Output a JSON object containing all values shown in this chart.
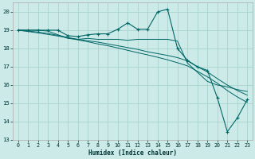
{
  "xlabel": "Humidex (Indice chaleur)",
  "bg_color": "#cceae7",
  "grid_color": "#aad4ce",
  "line_color": "#006666",
  "xlim": [
    -0.5,
    23.5
  ],
  "ylim": [
    13,
    20.5
  ],
  "xticks": [
    0,
    1,
    2,
    3,
    4,
    5,
    6,
    7,
    8,
    9,
    10,
    11,
    12,
    13,
    14,
    15,
    16,
    17,
    18,
    19,
    20,
    21,
    22,
    23
  ],
  "yticks": [
    13,
    14,
    15,
    16,
    17,
    18,
    19,
    20
  ],
  "main_y": [
    19.0,
    19.0,
    19.0,
    19.0,
    19.0,
    18.7,
    18.65,
    18.75,
    18.8,
    18.8,
    19.05,
    19.4,
    19.05,
    19.05,
    20.0,
    20.15,
    18.0,
    17.35,
    17.0,
    16.8,
    15.3,
    13.45,
    14.2,
    15.2
  ],
  "line2_y": [
    19.0,
    19.0,
    19.0,
    18.95,
    18.75,
    18.55,
    18.5,
    18.55,
    18.5,
    18.5,
    18.5,
    18.45,
    18.5,
    18.5,
    18.5,
    18.5,
    18.4,
    17.2,
    16.7,
    16.2,
    16.0,
    15.9,
    15.75,
    15.65
  ],
  "line3_y": [
    19.0,
    18.95,
    18.9,
    18.82,
    18.72,
    18.6,
    18.5,
    18.42,
    18.35,
    18.25,
    18.15,
    18.05,
    17.95,
    17.82,
    17.72,
    17.62,
    17.5,
    17.32,
    17.0,
    16.72,
    16.35,
    16.0,
    15.7,
    15.45
  ],
  "line4_y": [
    19.0,
    18.93,
    18.85,
    18.77,
    18.68,
    18.58,
    18.47,
    18.37,
    18.25,
    18.15,
    18.03,
    17.9,
    17.77,
    17.65,
    17.52,
    17.38,
    17.22,
    17.05,
    16.75,
    16.45,
    16.1,
    15.7,
    15.35,
    15.05
  ]
}
